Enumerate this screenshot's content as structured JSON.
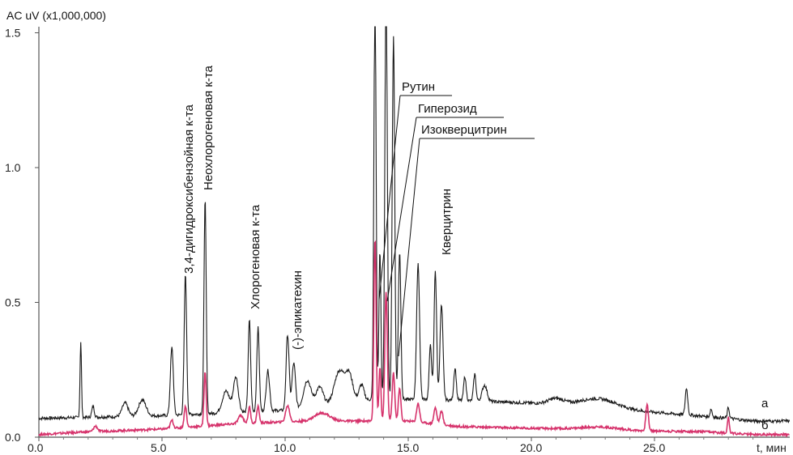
{
  "chart_data": {
    "type": "line",
    "ylabel": "AC uV (x1,000,000)",
    "xlabel": "t, мин",
    "xlim": [
      0,
      20.0
    ],
    "ylim": [
      0,
      1.5
    ],
    "x_ticks": [
      "0.0",
      "5.0",
      "10.0",
      "15.0",
      "20.0",
      "25.0"
    ],
    "y_ticks": [
      "0.0",
      "0.5",
      "1.0",
      "1.5"
    ],
    "x_tick_values": [
      0,
      5,
      10,
      15,
      20,
      25
    ],
    "y_tick_values": [
      0,
      0.5,
      1.0,
      1.5
    ],
    "colors": {
      "a": "#1a1a1a",
      "b": "#d6336c",
      "axis": "#555555"
    },
    "series": [
      {
        "name": "а",
        "baseline": [
          [
            0,
            0.07
          ],
          [
            5,
            0.08
          ],
          [
            10,
            0.1
          ],
          [
            13.5,
            0.14
          ],
          [
            16,
            0.14
          ],
          [
            19,
            0.13
          ],
          [
            22,
            0.12
          ],
          [
            24,
            0.1
          ],
          [
            28,
            0.07
          ],
          [
            29,
            0.06
          ]
        ],
        "peaks": [
          [
            1.7,
            0.28,
            0.03
          ],
          [
            2.2,
            0.04,
            0.05
          ],
          [
            3.5,
            0.05,
            0.12
          ],
          [
            4.2,
            0.06,
            0.15
          ],
          [
            5.4,
            0.25,
            0.06
          ],
          [
            5.95,
            0.52,
            0.05
          ],
          [
            6.75,
            0.8,
            0.045
          ],
          [
            7.6,
            0.08,
            0.15
          ],
          [
            8.0,
            0.13,
            0.1
          ],
          [
            8.55,
            0.34,
            0.05
          ],
          [
            8.9,
            0.31,
            0.05
          ],
          [
            9.3,
            0.15,
            0.07
          ],
          [
            10.1,
            0.28,
            0.06
          ],
          [
            10.35,
            0.17,
            0.07
          ],
          [
            10.9,
            0.1,
            0.15
          ],
          [
            11.4,
            0.07,
            0.15
          ],
          [
            12.2,
            0.12,
            0.2
          ],
          [
            12.6,
            0.1,
            0.15
          ],
          [
            13.1,
            0.06,
            0.1
          ],
          [
            13.65,
            1.5,
            0.045
          ],
          [
            13.85,
            0.55,
            0.04
          ],
          [
            14.1,
            1.52,
            0.05
          ],
          [
            14.4,
            1.35,
            0.05
          ],
          [
            14.65,
            0.55,
            0.05
          ],
          [
            15.4,
            0.5,
            0.06
          ],
          [
            15.9,
            0.2,
            0.05
          ],
          [
            16.1,
            0.48,
            0.05
          ],
          [
            16.35,
            0.35,
            0.06
          ],
          [
            16.9,
            0.12,
            0.05
          ],
          [
            17.3,
            0.09,
            0.05
          ],
          [
            17.7,
            0.1,
            0.05
          ],
          [
            18.1,
            0.06,
            0.1
          ],
          [
            21.0,
            0.02,
            0.3
          ],
          [
            22.8,
            0.03,
            0.7
          ],
          [
            26.3,
            0.1,
            0.05
          ],
          [
            27.3,
            0.03,
            0.04
          ],
          [
            28.0,
            0.04,
            0.04
          ]
        ]
      },
      {
        "name": "б",
        "baseline": [
          [
            0,
            0.01
          ],
          [
            2,
            0.02
          ],
          [
            5,
            0.03
          ],
          [
            8,
            0.05
          ],
          [
            11,
            0.06
          ],
          [
            13.5,
            0.06
          ],
          [
            15,
            0.06
          ],
          [
            17,
            0.04
          ],
          [
            19,
            0.035
          ],
          [
            22,
            0.03
          ],
          [
            24,
            0.025
          ],
          [
            27,
            0.02
          ],
          [
            29,
            0.01
          ]
        ],
        "peaks": [
          [
            2.3,
            0.02,
            0.08
          ],
          [
            5.4,
            0.03,
            0.06
          ],
          [
            5.95,
            0.08,
            0.05
          ],
          [
            6.75,
            0.2,
            0.045
          ],
          [
            8.2,
            0.03,
            0.1
          ],
          [
            8.55,
            0.06,
            0.05
          ],
          [
            8.9,
            0.06,
            0.05
          ],
          [
            10.1,
            0.06,
            0.08
          ],
          [
            11.5,
            0.03,
            0.3
          ],
          [
            13.65,
            0.68,
            0.045
          ],
          [
            13.85,
            0.2,
            0.04
          ],
          [
            14.1,
            0.48,
            0.05
          ],
          [
            14.4,
            0.18,
            0.05
          ],
          [
            14.65,
            0.12,
            0.05
          ],
          [
            15.4,
            0.07,
            0.06
          ],
          [
            16.1,
            0.06,
            0.06
          ],
          [
            16.35,
            0.05,
            0.06
          ],
          [
            22.8,
            0.01,
            0.7
          ],
          [
            24.7,
            0.1,
            0.05
          ],
          [
            28.0,
            0.06,
            0.04
          ]
        ]
      }
    ],
    "annotations": [
      {
        "text": "3,4-дигидроксибензойная к-та",
        "x": 5.95
      },
      {
        "text": "Неохлорогеновая к-та",
        "x": 6.75
      },
      {
        "text": "Хлорогеновая к-та",
        "x": 8.6
      },
      {
        "text": "(-)-эпикатехин",
        "x": 10.1
      },
      {
        "text": "Рутин",
        "x": 13.65
      },
      {
        "text": "Гиперозид",
        "x": 13.85
      },
      {
        "text": "Изокверцитрин",
        "x": 14.4
      },
      {
        "text": "Кверцитрин",
        "x": 16.1
      }
    ],
    "trace_labels": [
      "а",
      "б"
    ]
  }
}
